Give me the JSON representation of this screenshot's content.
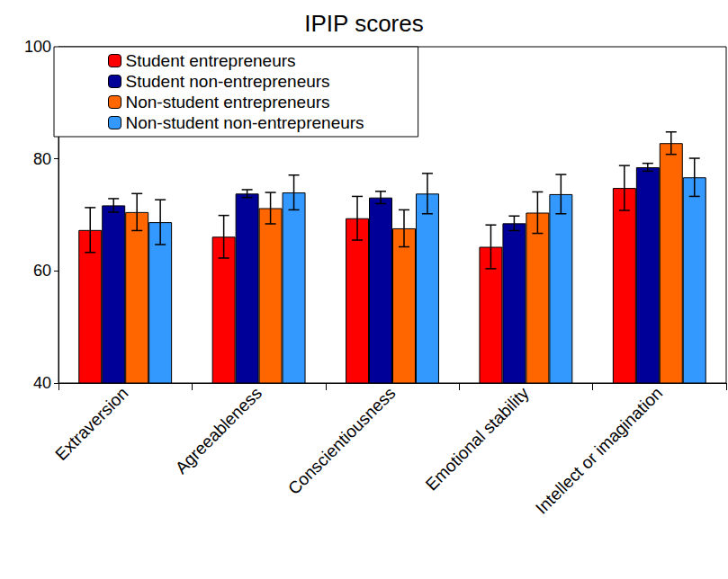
{
  "chart_data": {
    "type": "bar",
    "title": "IPIP scores",
    "categories": [
      "Extraversion",
      "Agreeableness",
      "Conscientiousness",
      "Emotional stability",
      "Intellect or imagination"
    ],
    "series": [
      {
        "name": "Student entrepreneurs",
        "color": "#ff0000",
        "values": [
          67.3,
          66.1,
          69.4,
          64.3,
          74.8
        ],
        "errors": [
          4.0,
          3.8,
          3.9,
          3.9,
          4.0
        ]
      },
      {
        "name": "Student non-entrepreneurs",
        "color": "#000099",
        "values": [
          71.7,
          73.8,
          73.1,
          68.5,
          78.5
        ],
        "errors": [
          1.2,
          0.7,
          1.1,
          1.3,
          0.7
        ]
      },
      {
        "name": "Non-student entrepreneurs",
        "color": "#ff6600",
        "values": [
          70.5,
          71.2,
          67.6,
          70.4,
          82.8
        ],
        "errors": [
          3.3,
          2.8,
          3.3,
          3.7,
          2.0
        ]
      },
      {
        "name": "Non-student non-entrepreneurs",
        "color": "#3399ff",
        "values": [
          68.7,
          74.0,
          73.8,
          73.7,
          76.7
        ],
        "errors": [
          4.0,
          3.1,
          3.6,
          3.5,
          3.4
        ]
      }
    ],
    "ylim": [
      40,
      100
    ],
    "yticks": [
      40,
      60,
      80,
      100
    ],
    "grid": false,
    "legend": "upper left"
  }
}
